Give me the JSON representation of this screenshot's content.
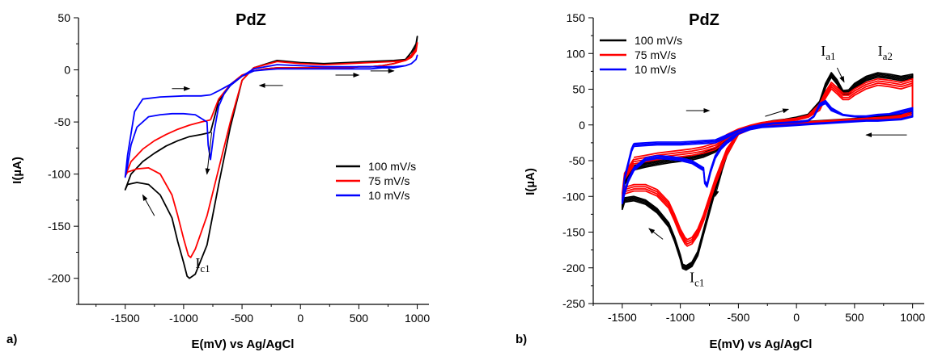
{
  "chart_data": [
    {
      "panel": "a)",
      "type": "line",
      "title": "PdZ",
      "xlabel": "E(mV) vs Ag/AgCl",
      "ylabel": "I(µA)",
      "xlim": [
        -1900,
        1100
      ],
      "ylim": [
        -225,
        50
      ],
      "xticks": [
        -1500,
        -1000,
        -500,
        0,
        500,
        1000
      ],
      "yticks": [
        50,
        0,
        -50,
        -100,
        -150,
        -200
      ],
      "legend_position": "right",
      "annotations": [
        {
          "text": "I",
          "sub": "c1",
          "x": -900,
          "y": -190
        }
      ],
      "arrows": [
        {
          "from": [
            -1250,
            -140
          ],
          "to": [
            -1350,
            -120
          ]
        },
        {
          "from": [
            -1100,
            -18
          ],
          "to": [
            -950,
            -18
          ]
        },
        {
          "from": [
            -760,
            -60
          ],
          "to": [
            -800,
            -100
          ]
        },
        {
          "from": [
            -150,
            -15
          ],
          "to": [
            -350,
            -15
          ]
        },
        {
          "from": [
            300,
            -5
          ],
          "to": [
            500,
            -5
          ]
        },
        {
          "from": [
            600,
            -1
          ],
          "to": [
            800,
            -1
          ]
        }
      ],
      "series": [
        {
          "name": "100 mV/s",
          "color": "#000000",
          "loops": [
            {
              "x": [
                -770,
                -700,
                -600,
                -500,
                -400,
                -300,
                -200,
                -100,
                0,
                100,
                200,
                300,
                400,
                500,
                600,
                700,
                800,
                900,
                950,
                990,
                1000,
                990,
                950,
                900,
                800,
                600,
                400,
                200,
                0,
                -200,
                -400,
                -500,
                -600,
                -700,
                -800,
                -900,
                -950,
                -970,
                -1000,
                -1050,
                -1100,
                -1200,
                -1300,
                -1400,
                -1480,
                -1500,
                -1450,
                -1350,
                -1250,
                -1150,
                -1050,
                -950,
                -850,
                -770
              ],
              "y": [
                -60,
                -30,
                -15,
                -6,
                -1,
                1,
                2,
                2,
                2,
                2,
                2,
                2,
                2,
                3,
                3,
                4,
                6,
                10,
                17,
                25,
                32,
                22,
                14,
                10,
                9,
                8,
                7,
                6,
                7,
                9,
                2,
                -10,
                -55,
                -110,
                -168,
                -196,
                -200,
                -198,
                -185,
                -165,
                -142,
                -120,
                -110,
                -108,
                -110,
                -115,
                -100,
                -88,
                -80,
                -73,
                -68,
                -64,
                -62,
                -60
              ]
            }
          ]
        },
        {
          "name": "75 mV/s",
          "color": "#ff0000",
          "loops": [
            {
              "x": [
                -770,
                -700,
                -600,
                -500,
                -400,
                -300,
                -200,
                -100,
                0,
                100,
                200,
                300,
                400,
                500,
                600,
                700,
                800,
                900,
                950,
                990,
                1000,
                990,
                950,
                900,
                800,
                600,
                400,
                200,
                0,
                -200,
                -400,
                -500,
                -600,
                -700,
                -800,
                -900,
                -940,
                -960,
                -1000,
                -1050,
                -1100,
                -1200,
                -1300,
                -1400,
                -1480,
                -1500,
                -1450,
                -1350,
                -1250,
                -1150,
                -1050,
                -950,
                -850,
                -770
              ],
              "y": [
                -48,
                -28,
                -14,
                -5,
                -1,
                1,
                2,
                2,
                2,
                2,
                2,
                2,
                2,
                3,
                3,
                4,
                6,
                9,
                14,
                20,
                26,
                18,
                12,
                9,
                8,
                7,
                6,
                5,
                6,
                8,
                2,
                -10,
                -50,
                -95,
                -140,
                -172,
                -180,
                -178,
                -162,
                -140,
                -120,
                -100,
                -94,
                -95,
                -98,
                -102,
                -88,
                -76,
                -68,
                -62,
                -57,
                -53,
                -50,
                -48
              ]
            }
          ]
        },
        {
          "name": "10 mV/s",
          "color": "#0000ff",
          "loops": [
            {
              "x": [
                -770,
                -700,
                -600,
                -500,
                -400,
                -300,
                -200,
                -100,
                0,
                100,
                200,
                300,
                400,
                500,
                600,
                700,
                800,
                900,
                950,
                990,
                1000,
                990,
                950,
                900,
                800,
                600,
                400,
                200,
                0,
                -200,
                -400,
                -500,
                -600,
                -650,
                -700,
                -740,
                -770,
                -790,
                -800,
                -900,
                -1000,
                -1100,
                -1200,
                -1300,
                -1400,
                -1450,
                -1480,
                -1500,
                -1480,
                -1420,
                -1350,
                -1200,
                -1000,
                -850,
                -770
              ],
              "y": [
                -24,
                -20,
                -14,
                -6,
                -1,
                0,
                1,
                1,
                1,
                1,
                1,
                1,
                1,
                1,
                1,
                2,
                2,
                4,
                6,
                10,
                14,
                10,
                6,
                4,
                3,
                3,
                3,
                3,
                4,
                5,
                1,
                -6,
                -15,
                -22,
                -35,
                -60,
                -86,
                -72,
                -50,
                -43,
                -42,
                -42,
                -43,
                -45,
                -55,
                -72,
                -92,
                -103,
                -82,
                -40,
                -28,
                -26,
                -25,
                -25,
                -24
              ]
            }
          ]
        }
      ]
    },
    {
      "panel": "b)",
      "type": "line",
      "title": "PdZ",
      "xlabel": "E(mV) vs Ag/AgCl",
      "ylabel": "I(µA)",
      "xlim": [
        -1750,
        1100
      ],
      "ylim": [
        -250,
        150
      ],
      "xticks": [
        -1500,
        -1000,
        -500,
        0,
        500,
        1000
      ],
      "yticks": [
        150,
        100,
        50,
        0,
        -50,
        -100,
        -150,
        -200,
        -250
      ],
      "legend_position": "top-left",
      "annotations": [
        {
          "text": "I",
          "sub": "a1",
          "x": 210,
          "y": 97
        },
        {
          "text": "I",
          "sub": "a2",
          "x": 700,
          "y": 97
        },
        {
          "text": "I",
          "sub": "c1",
          "x": -920,
          "y": -220
        }
      ],
      "arrows": [
        {
          "from": [
            -1150,
            -160
          ],
          "to": [
            -1270,
            -145
          ]
        },
        {
          "from": [
            -950,
            20
          ],
          "to": [
            -750,
            20
          ]
        },
        {
          "from": [
            -640,
            -65
          ],
          "to": [
            -700,
            -100
          ]
        },
        {
          "from": [
            -270,
            12
          ],
          "to": [
            -70,
            22
          ]
        },
        {
          "from": [
            350,
            80
          ],
          "to": [
            410,
            60
          ]
        },
        {
          "from": [
            950,
            -14
          ],
          "to": [
            600,
            -14
          ]
        }
      ],
      "series": [
        {
          "name": "100 mV/s",
          "color": "#000000",
          "loops": [
            {
              "x": [
                -1400,
                -1300,
                -1200,
                -1100,
                -1000,
                -900,
                -800,
                -700,
                -600,
                -500,
                -400,
                -300,
                -200,
                -100,
                0,
                100,
                200,
                250,
                300,
                350,
                400,
                450,
                500,
                600,
                700,
                800,
                900,
                1000,
                1000,
                900,
                800,
                700,
                600,
                500,
                400,
                300,
                200,
                100,
                0,
                -100,
                -200,
                -300,
                -400,
                -500,
                -600,
                -700,
                -800,
                -850,
                -900,
                -950,
                -980,
                -1000,
                -1050,
                -1100,
                -1200,
                -1300,
                -1400,
                -1480,
                -1500,
                -1480,
                -1400
              ],
              "y": [
                -60,
                -56,
                -53,
                -50,
                -48,
                -46,
                -42,
                -35,
                -20,
                -8,
                -2,
                2,
                5,
                7,
                10,
                14,
                30,
                55,
                70,
                60,
                45,
                46,
                55,
                65,
                70,
                68,
                65,
                68,
                20,
                14,
                12,
                11,
                10,
                8,
                7,
                6,
                5,
                4,
                3,
                2,
                0,
                -2,
                -5,
                -12,
                -40,
                -90,
                -150,
                -180,
                -195,
                -200,
                -198,
                -185,
                -160,
                -140,
                -120,
                -108,
                -103,
                -105,
                -115,
                -80,
                -60
              ],
              "copies": 4,
              "dy": 2
            }
          ]
        },
        {
          "name": "75 mV/s",
          "color": "#ff0000",
          "loops": [
            {
              "x": [
                -1400,
                -1300,
                -1200,
                -1100,
                -1000,
                -900,
                -800,
                -700,
                -600,
                -500,
                -400,
                -300,
                -200,
                -100,
                0,
                100,
                200,
                250,
                300,
                350,
                400,
                450,
                500,
                600,
                700,
                800,
                900,
                1000,
                1000,
                900,
                800,
                700,
                600,
                500,
                400,
                300,
                200,
                100,
                0,
                -100,
                -200,
                -300,
                -400,
                -500,
                -600,
                -700,
                -800,
                -850,
                -900,
                -940,
                -960,
                -1000,
                -1050,
                -1100,
                -1200,
                -1300,
                -1400,
                -1480,
                -1500,
                -1480,
                -1400
              ],
              "y": [
                -50,
                -47,
                -44,
                -42,
                -40,
                -38,
                -35,
                -30,
                -18,
                -7,
                -2,
                2,
                4,
                6,
                8,
                12,
                25,
                42,
                55,
                48,
                40,
                40,
                46,
                55,
                60,
                58,
                55,
                60,
                16,
                12,
                10,
                9,
                8,
                7,
                6,
                5,
                4,
                3,
                2,
                1,
                0,
                -2,
                -5,
                -12,
                -38,
                -80,
                -130,
                -150,
                -162,
                -165,
                -162,
                -150,
                -130,
                -112,
                -95,
                -88,
                -88,
                -92,
                -100,
                -72,
                -52
              ],
              "copies": 4,
              "dy": 3
            }
          ]
        },
        {
          "name": "10 mV/s",
          "color": "#0000ff",
          "loops": [
            {
              "x": [
                -1400,
                -1300,
                -1200,
                -1100,
                -1000,
                -900,
                -800,
                -700,
                -600,
                -500,
                -400,
                -300,
                -200,
                -100,
                0,
                100,
                150,
                200,
                250,
                300,
                400,
                500,
                600,
                700,
                800,
                900,
                1000,
                1000,
                900,
                800,
                700,
                600,
                500,
                400,
                300,
                200,
                100,
                0,
                -100,
                -200,
                -300,
                -400,
                -500,
                -550,
                -600,
                -650,
                -700,
                -740,
                -770,
                -790,
                -800,
                -900,
                -1000,
                -1100,
                -1200,
                -1300,
                -1400,
                -1450,
                -1480,
                -1500,
                -1480,
                -1420,
                -1400
              ],
              "y": [
                -28,
                -27,
                -26,
                -26,
                -26,
                -25,
                -24,
                -23,
                -16,
                -8,
                -3,
                0,
                2,
                3,
                4,
                6,
                12,
                28,
                32,
                22,
                14,
                12,
                12,
                14,
                15,
                18,
                22,
                12,
                8,
                7,
                6,
                6,
                5,
                4,
                3,
                2,
                1,
                0,
                -1,
                -2,
                -3,
                -6,
                -12,
                -18,
                -24,
                -32,
                -45,
                -65,
                -85,
                -80,
                -62,
                -52,
                -48,
                -46,
                -45,
                -48,
                -62,
                -78,
                -95,
                -108,
                -75,
                -35,
                -28
              ],
              "copies": 3,
              "dy": 2
            }
          ]
        }
      ]
    }
  ]
}
